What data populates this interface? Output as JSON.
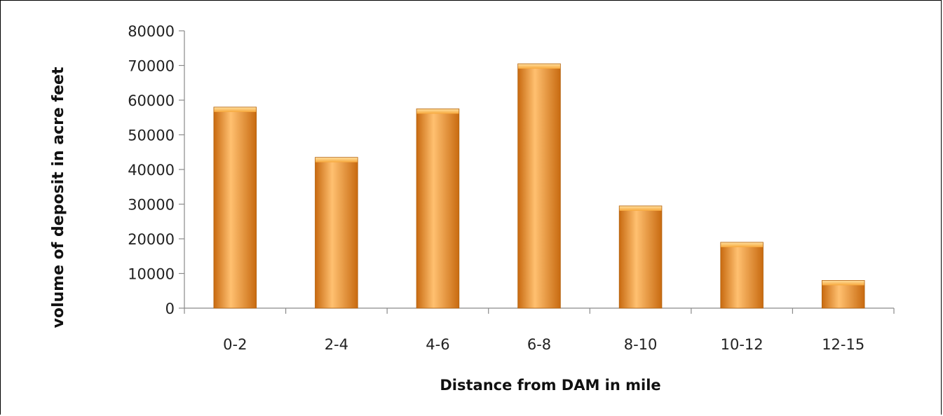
{
  "chart_data": {
    "type": "bar",
    "categories": [
      "0-2",
      "2-4",
      "4-6",
      "6-8",
      "8-10",
      "10-12",
      "12-15"
    ],
    "values": [
      58000,
      43500,
      57500,
      70500,
      29500,
      19000,
      8000
    ],
    "title": "",
    "xlabel": "Distance from DAM in mile",
    "ylabel": "volume of deposit in acre feet",
    "ylim": [
      0,
      80000
    ],
    "yticks": [
      0,
      10000,
      20000,
      30000,
      40000,
      50000,
      60000,
      70000,
      80000
    ],
    "grid": false,
    "legend": "none",
    "bar_color": "#f59a2f",
    "bar_color_dark": "#c86a10",
    "bar_color_light": "#ffc070"
  }
}
